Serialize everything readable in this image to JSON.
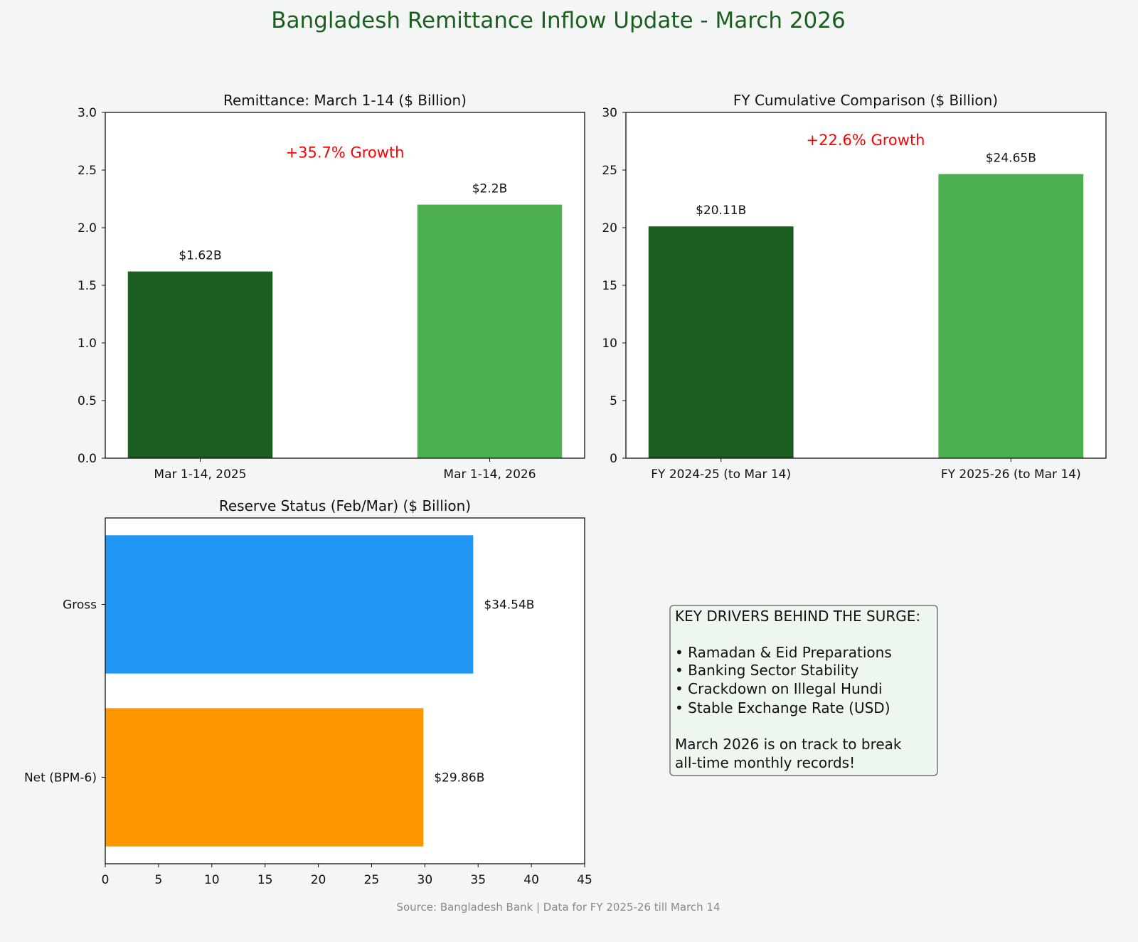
{
  "title": "Bangladesh Remittance Inflow Update - March 2026",
  "source_note": "Source: Bangladesh Bank | Data for FY 2025-26 till March 14",
  "colors": {
    "title": "#1b5e20",
    "dark_green": "#1b5e20",
    "light_green": "#4caf50",
    "blue": "#2196f3",
    "orange": "#ff9800",
    "growth_text": "#ff0000",
    "box_bg": "#e8f5e9"
  },
  "chart_data": [
    {
      "type": "bar",
      "title": "Remittance: March 1-14 ($ Billion)",
      "categories": [
        "Mar 1-14, 2025",
        "Mar 1-14, 2026"
      ],
      "values": [
        1.62,
        2.2
      ],
      "data_labels": [
        "$1.62B",
        "$2.2B"
      ],
      "colors": [
        "#1b5e20",
        "#4caf50"
      ],
      "ylim": [
        0,
        3.0
      ],
      "yticks": [
        "0.0",
        "0.5",
        "1.0",
        "1.5",
        "2.0",
        "2.5",
        "3.0"
      ],
      "ytick_values": [
        0,
        0.5,
        1.0,
        1.5,
        2.0,
        2.5,
        3.0
      ],
      "annotation": "+35.7% Growth",
      "annotation_y": 2.65,
      "xlabel": "",
      "ylabel": "",
      "grid": false
    },
    {
      "type": "bar",
      "title": "FY Cumulative Comparison ($ Billion)",
      "categories": [
        "FY 2024-25 (to Mar 14)",
        "FY 2025-26 (to Mar 14)"
      ],
      "values": [
        20.11,
        24.65
      ],
      "data_labels": [
        "$20.11B",
        "$24.65B"
      ],
      "colors": [
        "#1b5e20",
        "#4caf50"
      ],
      "ylim": [
        0,
        30
      ],
      "yticks": [
        "0",
        "5",
        "10",
        "15",
        "20",
        "25",
        "30"
      ],
      "ytick_values": [
        0,
        5,
        10,
        15,
        20,
        25,
        30
      ],
      "annotation": "+22.6% Growth",
      "annotation_y": 27.6,
      "xlabel": "",
      "ylabel": "",
      "grid": false
    },
    {
      "type": "bar",
      "orientation": "horizontal",
      "title": "Reserve Status (Feb/Mar) ($ Billion)",
      "categories": [
        "Gross",
        "Net (BPM-6)"
      ],
      "values": [
        34.54,
        29.86
      ],
      "data_labels": [
        "$34.54B",
        "$29.86B"
      ],
      "colors": [
        "#2196f3",
        "#ff9800"
      ],
      "xlim": [
        0,
        45
      ],
      "xticks": [
        "0",
        "5",
        "10",
        "15",
        "20",
        "25",
        "30",
        "35",
        "40",
        "45"
      ],
      "xtick_values": [
        0,
        5,
        10,
        15,
        20,
        25,
        30,
        35,
        40,
        45
      ],
      "xlabel": "",
      "ylabel": "",
      "grid": false
    }
  ],
  "info_box": {
    "heading": "KEY DRIVERS BEHIND THE SURGE:",
    "bullets": [
      "• Ramadan & Eid Preparations",
      "• Banking Sector Stability",
      "• Crackdown on Illegal Hundi",
      "• Stable Exchange Rate (USD)"
    ],
    "closing_lines": [
      "March 2026 is on track to break",
      "all-time monthly records!"
    ]
  }
}
